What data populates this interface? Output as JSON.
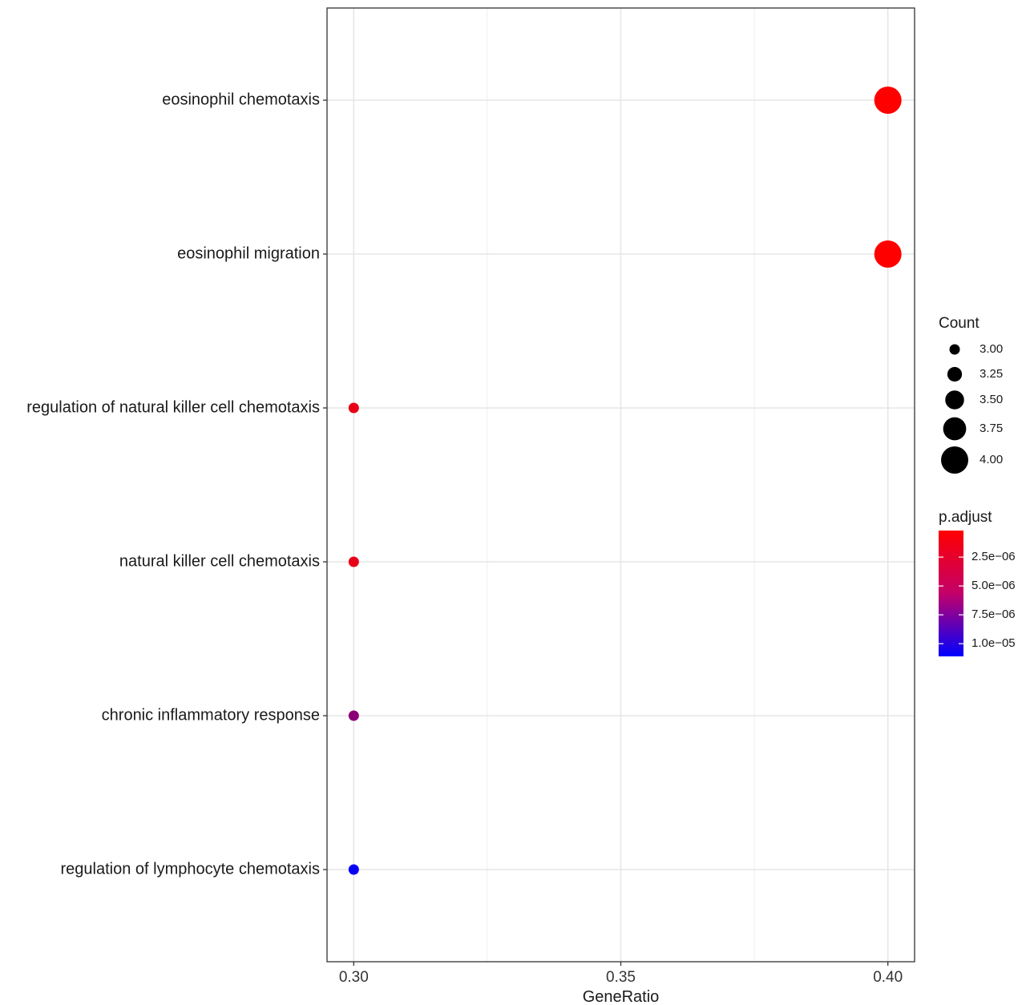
{
  "chart_data": {
    "type": "scatter",
    "xlabel": "GeneRatio",
    "ylabel": "",
    "xlim": [
      0.295,
      0.405
    ],
    "xticks": [
      0.3,
      0.35,
      0.4
    ],
    "xtick_labels": [
      "0.30",
      "0.35",
      "0.40"
    ],
    "grid": true,
    "legend_position": "right",
    "categories": [
      "eosinophil chemotaxis",
      "eosinophil migration",
      "regulation of natural killer cell chemotaxis",
      "natural killer cell chemotaxis",
      "chronic inflammatory response",
      "regulation of lymphocyte chemotaxis"
    ],
    "points": [
      {
        "term": "eosinophil chemotaxis",
        "gene_ratio": 0.4,
        "count": 4,
        "p_adjust": 2e-07
      },
      {
        "term": "eosinophil migration",
        "gene_ratio": 0.4,
        "count": 4,
        "p_adjust": 2e-07
      },
      {
        "term": "regulation of natural killer cell chemotaxis",
        "gene_ratio": 0.3,
        "count": 3,
        "p_adjust": 1.2e-06
      },
      {
        "term": "natural killer cell chemotaxis",
        "gene_ratio": 0.3,
        "count": 3,
        "p_adjust": 1.2e-06
      },
      {
        "term": "chronic inflammatory response",
        "gene_ratio": 0.3,
        "count": 3,
        "p_adjust": 5.2e-06
      },
      {
        "term": "regulation of lymphocyte chemotaxis",
        "gene_ratio": 0.3,
        "count": 3,
        "p_adjust": 1.08e-05
      }
    ],
    "size_legend": {
      "title": "Count",
      "values": [
        3.0,
        3.25,
        3.5,
        3.75,
        4.0
      ],
      "labels": [
        "3.00",
        "3.25",
        "3.50",
        "3.75",
        "4.00"
      ]
    },
    "color_legend": {
      "title": "p.adjust",
      "range": [
        2e-07,
        1.11e-05
      ],
      "ticks": [
        2.5e-06,
        5e-06,
        7.5e-06,
        1e-05
      ],
      "labels": [
        "2.5e−06",
        "5.0e−06",
        "7.5e−06",
        "1.0e−05"
      ],
      "low_color": "#ff0000",
      "high_color": "#0000ff"
    }
  }
}
